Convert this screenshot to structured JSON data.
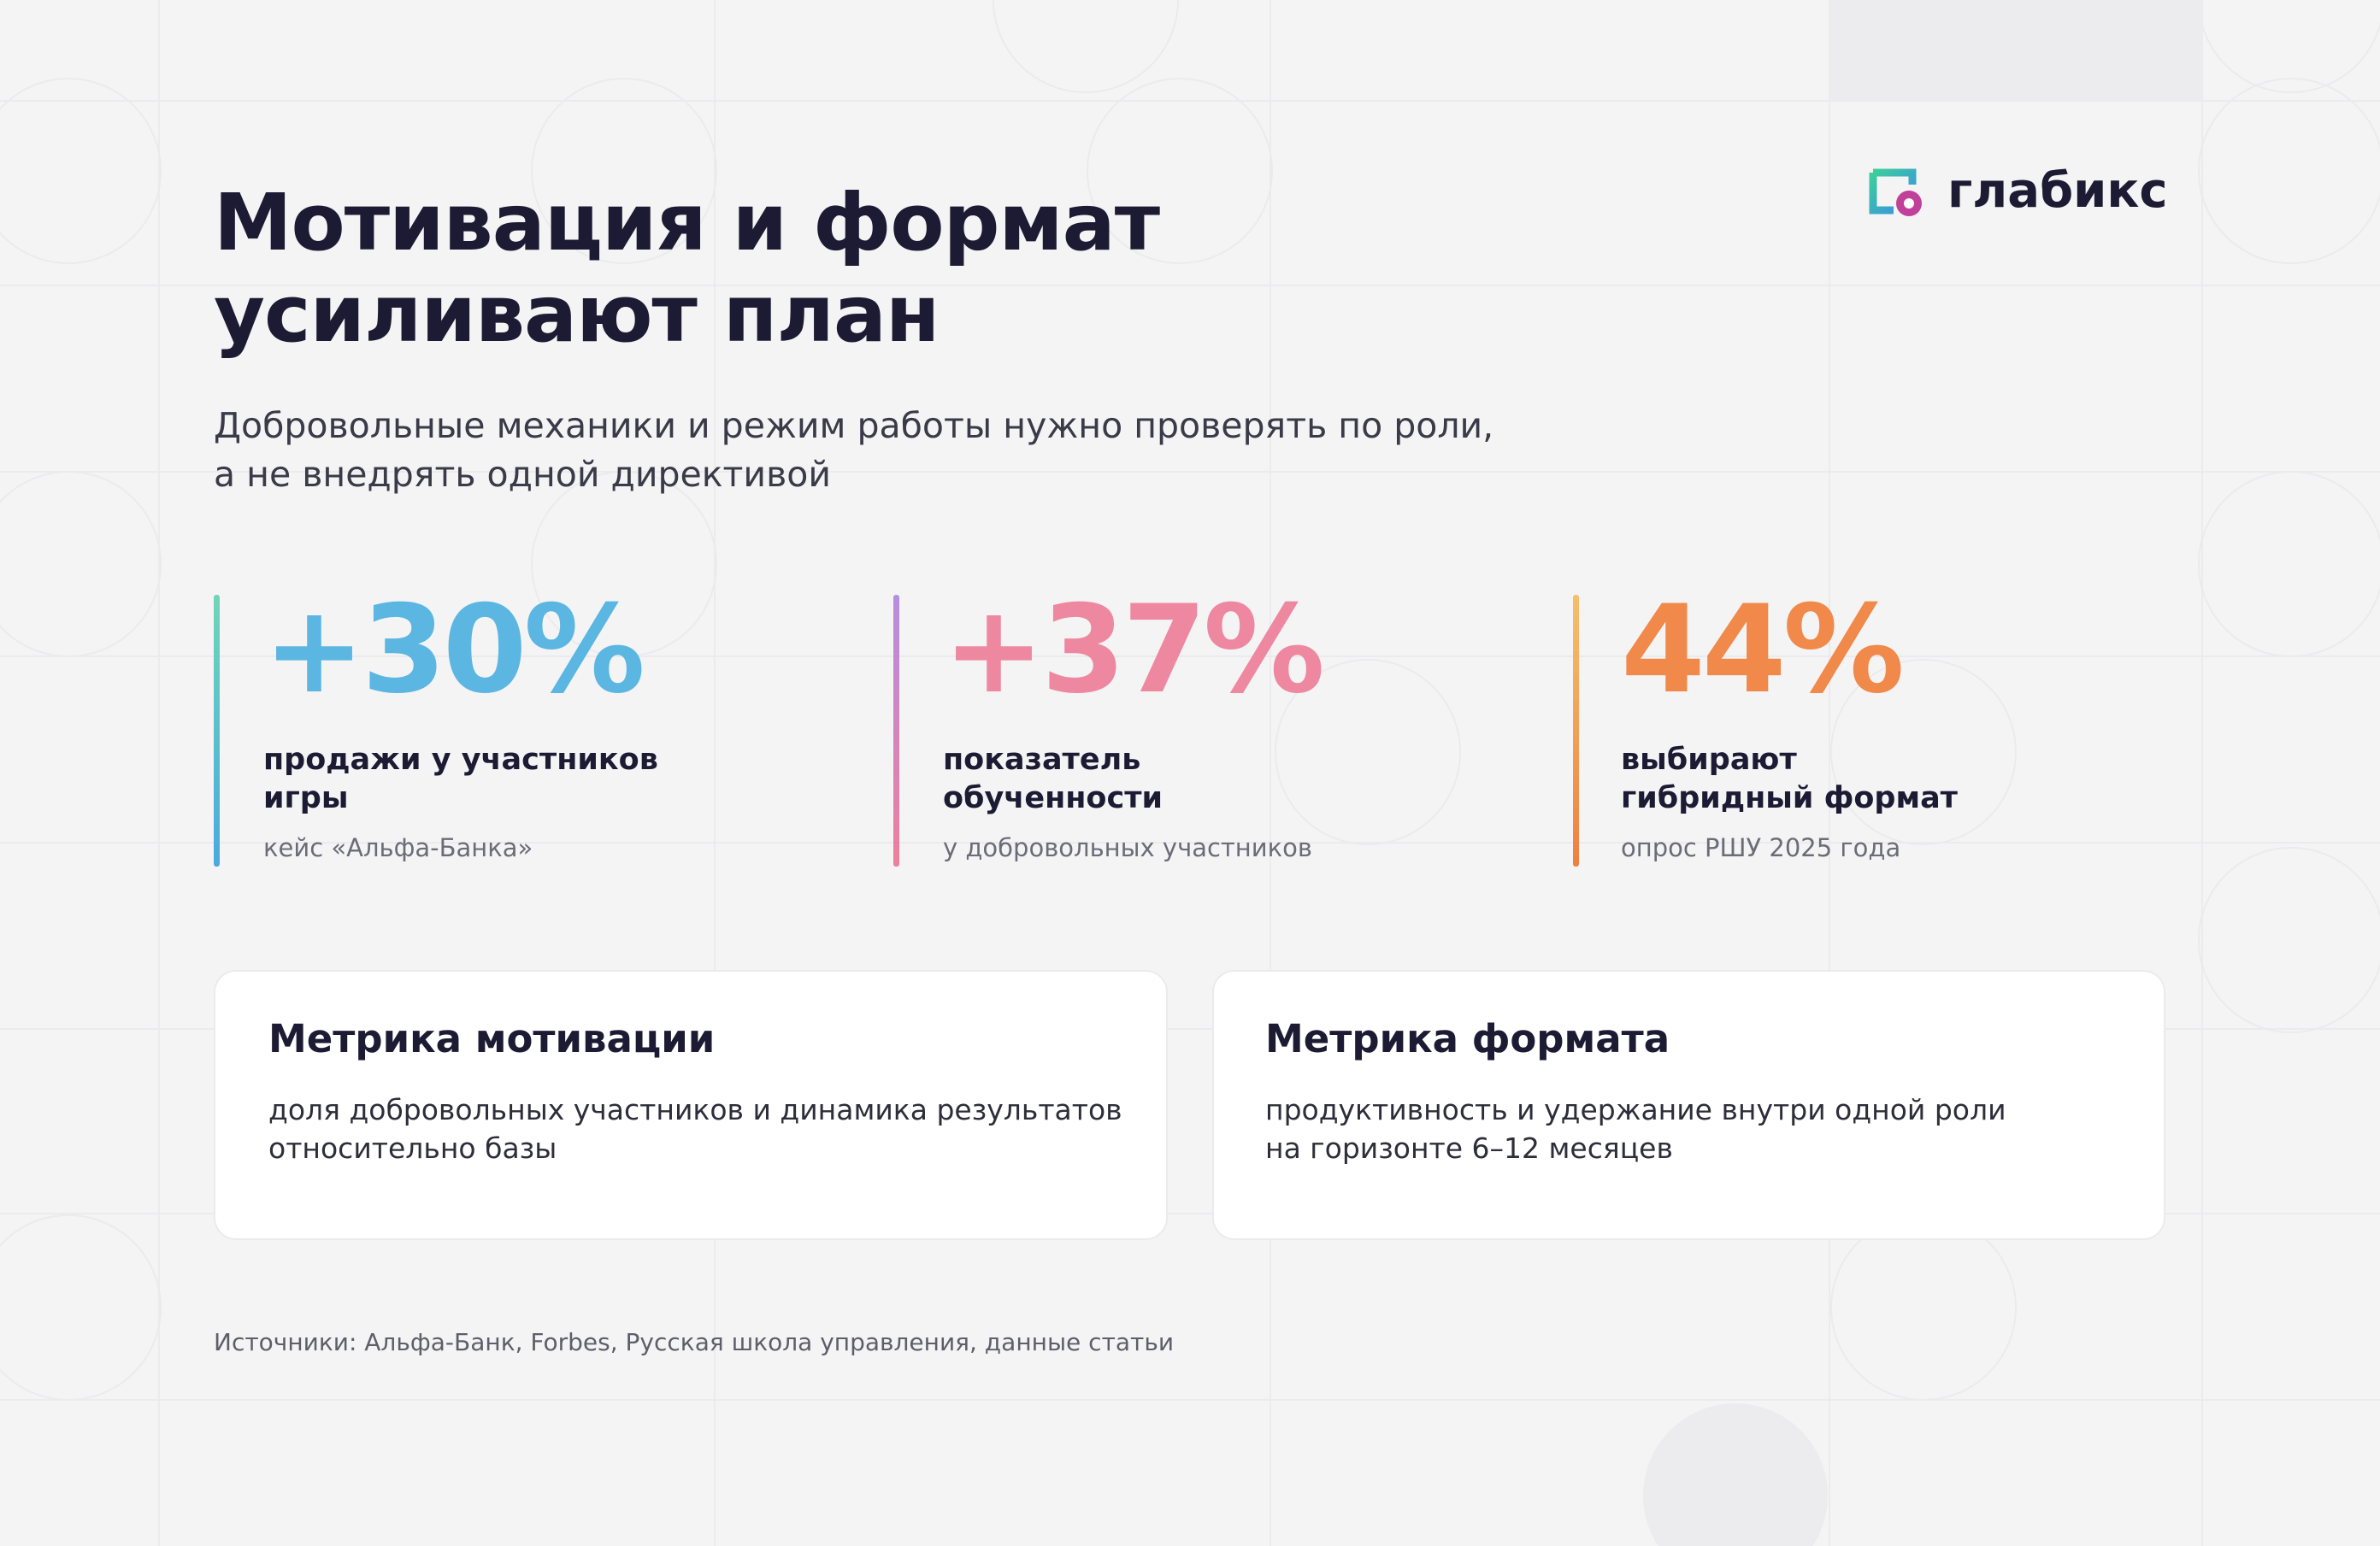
{
  "header": {
    "title_lines": [
      "Мотивация и формат",
      "усиливают план"
    ],
    "subtitle_lines": [
      "Добровольные механики и режим работы нужно проверять по роли,",
      "а не внедрять одной директивой"
    ],
    "brand": "глабикс"
  },
  "stats": [
    {
      "value": "+30%",
      "label_lines": [
        "продажи у участников",
        "игры"
      ],
      "note": "кейс «Альфа-Банка»"
    },
    {
      "value": "+37%",
      "label_lines": [
        "показатель",
        "обученности"
      ],
      "note": "у добровольных участников"
    },
    {
      "value": "44%",
      "label_lines": [
        "выбирают",
        "гибридный формат"
      ],
      "note": "опрос РШУ 2025 года"
    }
  ],
  "cards": [
    {
      "title": "Метрика мотивации",
      "text_lines": [
        "доля добровольных участников и динамика результатов",
        "относительно базы"
      ]
    },
    {
      "title": "Метрика формата",
      "text_lines": [
        "продуктивность и удержание внутри одной роли",
        "на горизонте 6–12 месяцев"
      ]
    }
  ],
  "footer": "Источники: Альфа-Банк, Forbes, Русская школа управления, данные статьи"
}
